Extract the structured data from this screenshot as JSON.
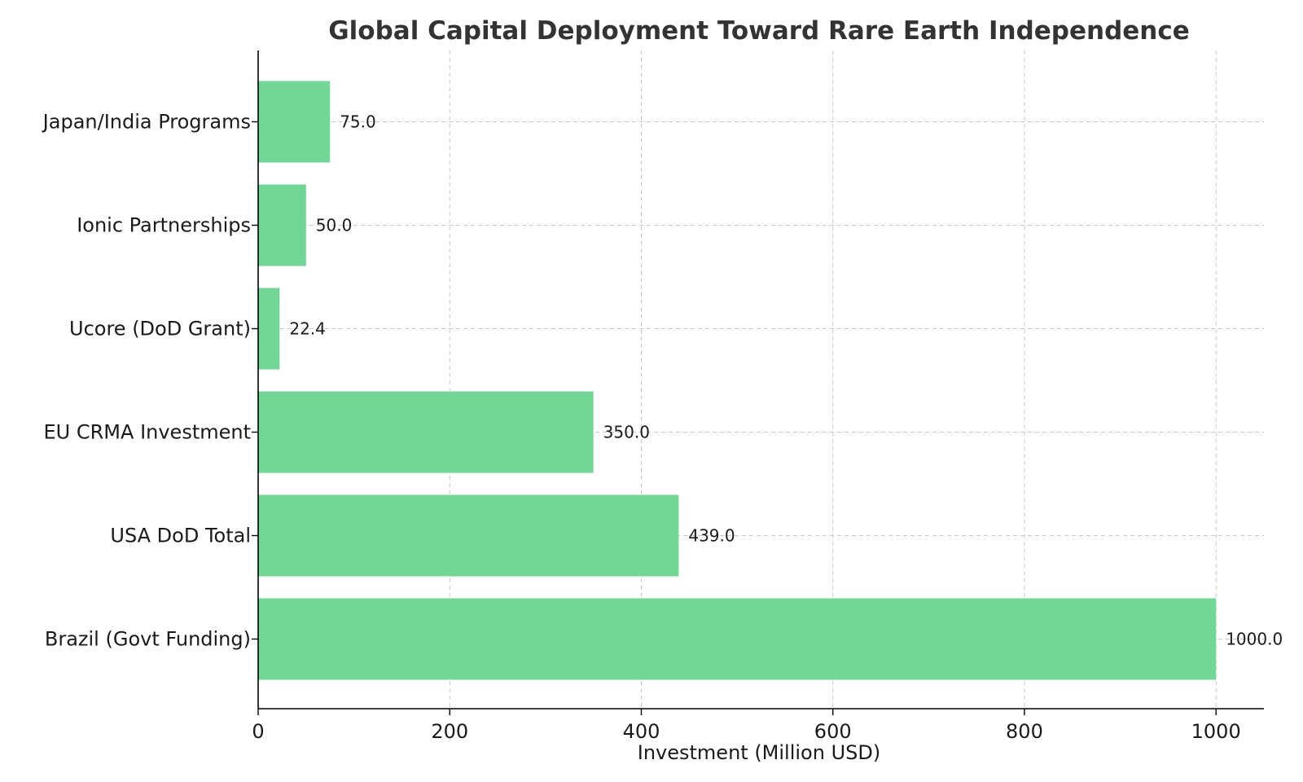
{
  "chart_data": {
    "type": "bar",
    "orientation": "horizontal",
    "title": "Global Capital Deployment Toward Rare Earth Independence",
    "xlabel": "Investment (Million USD)",
    "ylabel": "",
    "categories": [
      "Brazil (Govt Funding)",
      "USA DoD Total",
      "EU CRMA Investment",
      "Ucore (DoD Grant)",
      "Ionic Partnerships",
      "Japan/India Programs"
    ],
    "values": [
      1000.0,
      439.0,
      350.0,
      22.4,
      50.0,
      75.0
    ],
    "value_labels": [
      "1000.0",
      "439.0",
      "350.0",
      "22.4",
      "50.0",
      "75.0"
    ],
    "xlim": [
      0,
      1050
    ],
    "xticks": [
      0,
      200,
      400,
      600,
      800,
      1000
    ],
    "grid": true,
    "bar_color": "#72d796"
  }
}
